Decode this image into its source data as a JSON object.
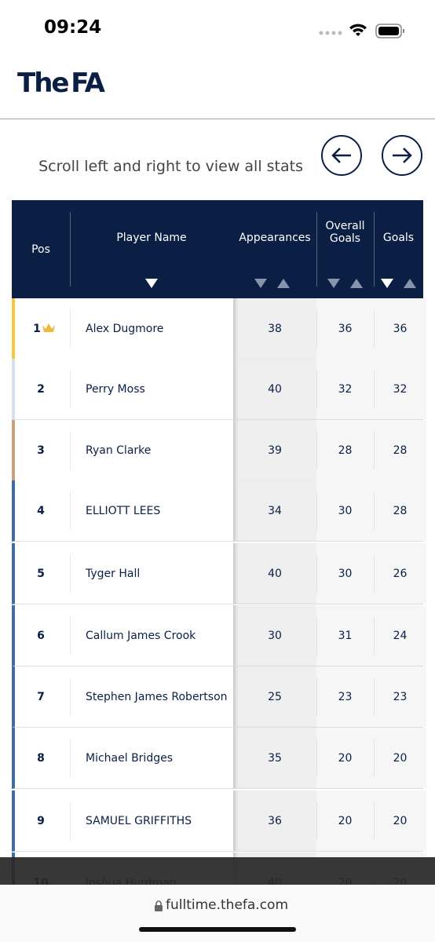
{
  "status_bar": {
    "time": "09:24"
  },
  "header": {
    "logo": "The FA"
  },
  "table_controls": {
    "hint": "Scroll left and right to view all stats"
  },
  "table": {
    "columns": [
      "Pos",
      "Player Name",
      "Appearances",
      "Overall Goals",
      "Goals"
    ],
    "rows": [
      [
        1,
        "Alex Dugmore",
        38,
        36,
        36
      ],
      [
        2,
        "Perry Moss",
        40,
        32,
        32
      ],
      [
        3,
        "Ryan Clarke",
        39,
        28,
        28
      ],
      [
        4,
        "ELLIOTT LEES",
        34,
        30,
        28
      ],
      [
        5,
        "Tyger Hall",
        40,
        30,
        26
      ],
      [
        6,
        "Callum James Crook",
        30,
        31,
        24
      ],
      [
        7,
        "Stephen James Robertson",
        25,
        23,
        23
      ],
      [
        8,
        "Michael Bridges",
        35,
        20,
        20
      ],
      [
        9,
        "SAMUEL GRIFFITHS",
        36,
        20,
        20
      ],
      [
        10,
        "Joshua Hurdman",
        40,
        20,
        20
      ]
    ]
  },
  "browser": {
    "url": "fulltime.thefa.com"
  }
}
